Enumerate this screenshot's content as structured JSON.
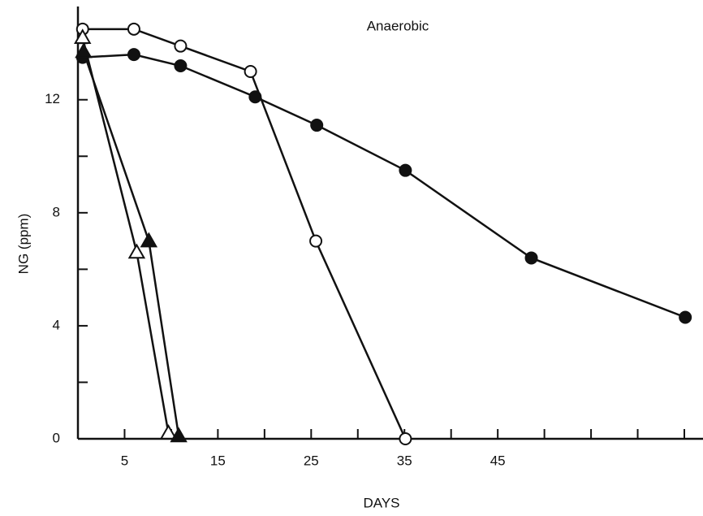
{
  "chart_data": {
    "type": "line",
    "title": "Anaerobic",
    "xlabel": "DAYS",
    "ylabel": "NG (ppm)",
    "xlim": [
      0,
      67
    ],
    "ylim": [
      0,
      15.3
    ],
    "xticks": [
      5,
      15,
      25,
      35,
      45
    ],
    "xticks_minor": [
      10,
      20,
      30,
      40,
      50,
      55,
      60,
      65
    ],
    "yticks": [
      0,
      4,
      8,
      12
    ],
    "yticks_minor": [
      2,
      6,
      10,
      14
    ],
    "color": "#111111",
    "series": [
      {
        "marker": "filled-circle",
        "color": "#111111",
        "x": [
          0.5,
          6,
          11,
          19,
          25.6,
          35.1,
          48.6,
          65.1
        ],
        "values": [
          13.5,
          13.6,
          13.2,
          12.1,
          11.1,
          9.5,
          6.4,
          4.3
        ]
      },
      {
        "marker": "open-circle",
        "color": "#111111",
        "x": [
          0.5,
          6,
          11,
          18.5,
          25.5,
          35.1
        ],
        "values": [
          14.5,
          14.5,
          13.9,
          13.0,
          7.0,
          0.0
        ]
      },
      {
        "marker": "open-triangle",
        "color": "#111111",
        "x": [
          0.5,
          6.3,
          9.7
        ],
        "values": [
          14.2,
          6.6,
          0.2
        ]
      },
      {
        "marker": "filled-triangle",
        "color": "#111111",
        "x": [
          0.6,
          7.6,
          10.8
        ],
        "values": [
          13.7,
          7.0,
          0.1
        ]
      }
    ]
  }
}
